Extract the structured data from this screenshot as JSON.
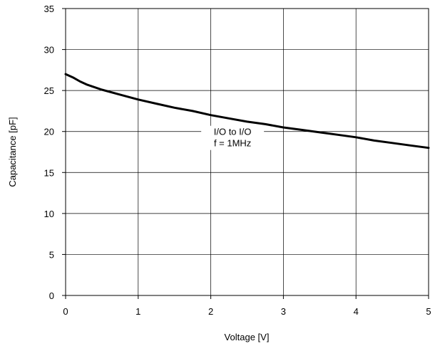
{
  "chart_data": {
    "type": "line",
    "xlabel": "Voltage [V]",
    "ylabel": "Capacitance [pF]",
    "xlim": [
      0,
      5
    ],
    "ylim": [
      0,
      35
    ],
    "x_ticks": [
      "0",
      "1",
      "2",
      "3",
      "4",
      "5"
    ],
    "y_ticks": [
      "0",
      "5",
      "10",
      "15",
      "20",
      "25",
      "30",
      "35"
    ],
    "grid": true,
    "annotation": {
      "line1": "I/O to I/O",
      "line2": "f = 1MHz",
      "x": 2.3,
      "y": 20
    },
    "series": [
      {
        "x": [
          0,
          0.1,
          0.2,
          0.3,
          0.5,
          0.75,
          1.0,
          1.25,
          1.5,
          1.75,
          2.0,
          2.25,
          2.5,
          2.75,
          3.0,
          3.25,
          3.5,
          3.75,
          4.0,
          4.25,
          4.5,
          4.75,
          5.0
        ],
        "y": [
          27.0,
          26.6,
          26.1,
          25.7,
          25.1,
          24.5,
          23.9,
          23.4,
          22.9,
          22.5,
          22.0,
          21.6,
          21.2,
          20.9,
          20.5,
          20.2,
          19.9,
          19.6,
          19.3,
          18.9,
          18.6,
          18.3,
          18.0
        ]
      }
    ]
  }
}
